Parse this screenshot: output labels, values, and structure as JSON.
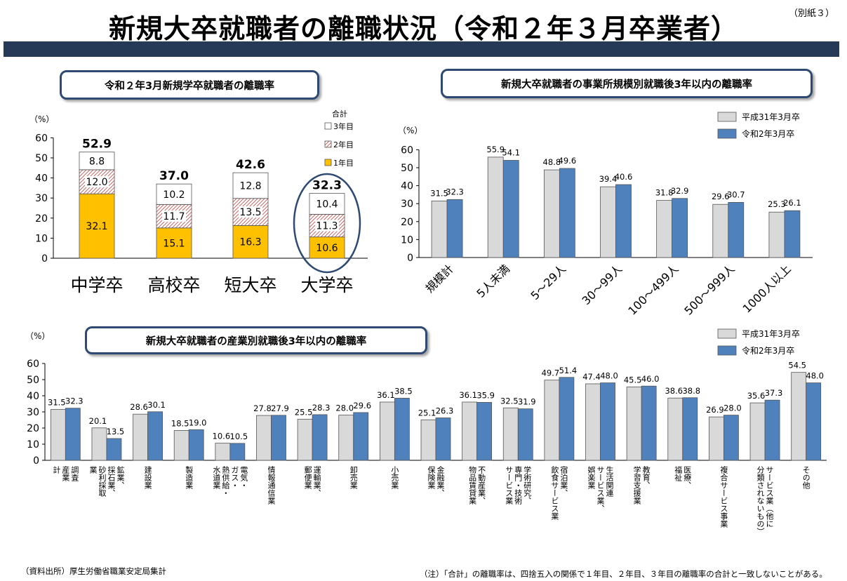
{
  "header": {
    "title": "新規大卒就職者の離職状況（令和２年３月卒業者）",
    "appendix": "（別紙３）"
  },
  "panels": {
    "left_title": "令和２年3月新規学卒就職者の離職率",
    "right_title": "新規大卒就職者の事業所規模別就職後3年以内の離職率",
    "bottom_title": "新規大卒就職者の産業別就職後3年以内の離職率"
  },
  "footer": {
    "source": "（資料出所）厚生労働省職業安定局集計",
    "note": "（注）「合計」の離職率は、四捨五入の関係で１年目、２年目、３年目の離職率の合計と一致しないことがある。"
  },
  "colors": {
    "year1": "#ffc000",
    "year3": "#ffffff",
    "gray": "#d9d9d9",
    "blue": "#4f81bd",
    "ellipse": "#2e4a72"
  },
  "chart_data": [
    {
      "type": "bar",
      "stacked": true,
      "ylabel": "（%）",
      "ylim": [
        0,
        60
      ],
      "yticks": [
        0,
        10,
        20,
        30,
        40,
        50,
        60
      ],
      "categories": [
        "中学卒",
        "高校卒",
        "短大卒",
        "大学卒"
      ],
      "series": [
        {
          "name": "1年目",
          "values": [
            32.1,
            15.1,
            16.3,
            10.6
          ]
        },
        {
          "name": "2年目",
          "values": [
            12.0,
            11.7,
            13.5,
            11.3
          ]
        },
        {
          "name": "3年目",
          "values": [
            8.8,
            10.2,
            12.8,
            10.4
          ]
        }
      ],
      "totals": [
        52.9,
        37.0,
        42.6,
        32.3
      ],
      "legend_title": "合計",
      "legend_position": "top-right",
      "highlight": "大学卒"
    },
    {
      "type": "bar",
      "ylabel": "（%）",
      "ylim": [
        0,
        60
      ],
      "yticks": [
        0,
        10,
        20,
        30,
        40,
        50,
        60
      ],
      "categories": [
        "規模計",
        "5人未満",
        "5～29人",
        "30～99人",
        "100～499人",
        "500～999人",
        "1000人以上"
      ],
      "series": [
        {
          "name": "平成31年3月卒",
          "values": [
            31.5,
            55.9,
            48.8,
            39.4,
            31.8,
            29.6,
            25.3
          ]
        },
        {
          "name": "令和2年3月卒",
          "values": [
            32.3,
            54.1,
            49.6,
            40.6,
            32.9,
            30.7,
            26.1
          ]
        }
      ],
      "legend_position": "top-right"
    },
    {
      "type": "bar",
      "ylabel": "（%）",
      "ylim": [
        0,
        60
      ],
      "yticks": [
        0,
        10,
        20,
        30,
        40,
        50,
        60
      ],
      "categories": [
        "調査産業計",
        "鉱業、採石業、砂利採取業",
        "建設業",
        "製造業",
        "電気・ガス・熱供給・水道業",
        "情報通信業",
        "運輸業、郵便業",
        "卸売業",
        "小売業",
        "金融業、保険業",
        "不動産業、物品賃貸業",
        "学術研究、専門・技術サービス業",
        "宿泊業、飲食サービス業",
        "生活関連サービス業、娯楽業",
        "教育、学習支援業",
        "医療、福祉",
        "複合サービス事業",
        "サービス業（他に分類されないもの）",
        "その他"
      ],
      "series": [
        {
          "name": "平成31年3月卒",
          "values": [
            31.5,
            20.1,
            28.6,
            18.5,
            10.6,
            27.8,
            25.5,
            28.0,
            36.1,
            25.1,
            36.1,
            32.5,
            49.7,
            47.4,
            45.5,
            38.6,
            26.9,
            35.6,
            54.5
          ]
        },
        {
          "name": "令和2年3月卒",
          "values": [
            32.3,
            13.5,
            30.1,
            19.0,
            10.5,
            27.9,
            28.3,
            29.6,
            38.5,
            26.3,
            35.9,
            31.9,
            51.4,
            48.0,
            46.0,
            38.8,
            28.0,
            37.3,
            48.0
          ]
        }
      ],
      "category_lines": [
        [
          "調査",
          "産業",
          "計"
        ],
        [
          "鉱業、",
          "採石業、",
          "砂利採取",
          "業"
        ],
        [
          "建設業"
        ],
        [
          "製造業"
        ],
        [
          "電気・",
          "ガス・",
          "熱供給・",
          "水道業"
        ],
        [
          "情報通信業"
        ],
        [
          "運輸業、",
          "郵便業"
        ],
        [
          "卸売業"
        ],
        [
          "小売業"
        ],
        [
          "金融業、",
          "保険業"
        ],
        [
          "不動産業、",
          "物品賃貸業"
        ],
        [
          "学術研究、",
          "専門・技術",
          "サービス業"
        ],
        [
          "宿泊業、",
          "飲食サービス業"
        ],
        [
          "生活関連",
          "サービス業、",
          "娯楽業"
        ],
        [
          "教育、",
          "学習支援業"
        ],
        [
          "医療、",
          "福祉"
        ],
        [
          "複合サービス事業"
        ],
        [
          "サービス業（他に",
          "分類されないもの）"
        ],
        [
          "その他"
        ]
      ],
      "legend_position": "top-right"
    }
  ]
}
